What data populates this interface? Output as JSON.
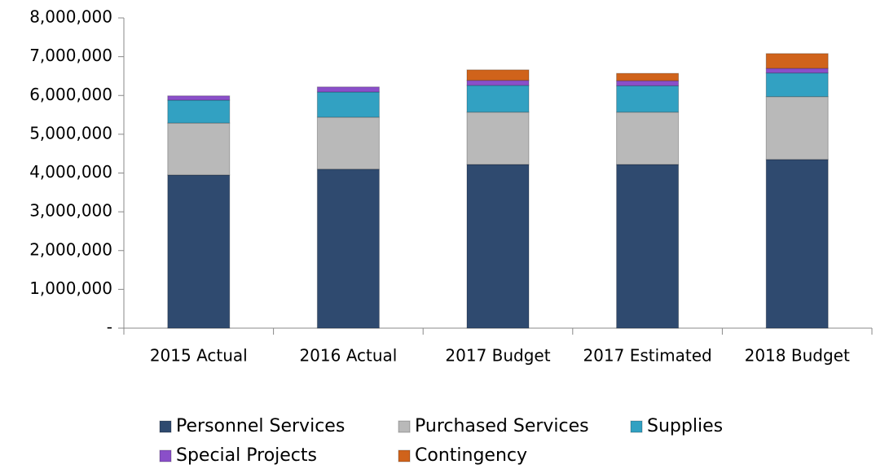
{
  "chart_data": {
    "type": "stacked_bar",
    "categories": [
      "2015 Actual",
      "2016 Actual",
      "2017 Budget",
      "2017 Estimated",
      "2018 Budget"
    ],
    "series": [
      {
        "name": "Personnel Services",
        "color": "#2f4a6f",
        "values": [
          3950000,
          4100000,
          4220000,
          4220000,
          4350000
        ]
      },
      {
        "name": "Purchased Services",
        "color": "#b9b9b9",
        "values": [
          1340000,
          1340000,
          1350000,
          1350000,
          1620000
        ]
      },
      {
        "name": "Supplies",
        "color": "#32a1c2",
        "values": [
          590000,
          650000,
          690000,
          680000,
          610000
        ]
      },
      {
        "name": "Special Projects",
        "color": "#8a4fc9",
        "values": [
          110000,
          130000,
          130000,
          130000,
          120000
        ]
      },
      {
        "name": "Contingency",
        "color": "#d0631b",
        "values": [
          0,
          0,
          270000,
          190000,
          380000
        ]
      }
    ],
    "ylim": [
      0,
      8000000
    ],
    "yticks": [
      {
        "value": 0,
        "label": "-"
      },
      {
        "value": 1000000,
        "label": "1,000,000"
      },
      {
        "value": 2000000,
        "label": "2,000,000"
      },
      {
        "value": 3000000,
        "label": "3,000,000"
      },
      {
        "value": 4000000,
        "label": "4,000,000"
      },
      {
        "value": 5000000,
        "label": "5,000,000"
      },
      {
        "value": 6000000,
        "label": "6,000,000"
      },
      {
        "value": 7000000,
        "label": "7,000,000"
      },
      {
        "value": 8000000,
        "label": "8,000,000"
      }
    ],
    "grid": false,
    "legend": "bottom"
  }
}
